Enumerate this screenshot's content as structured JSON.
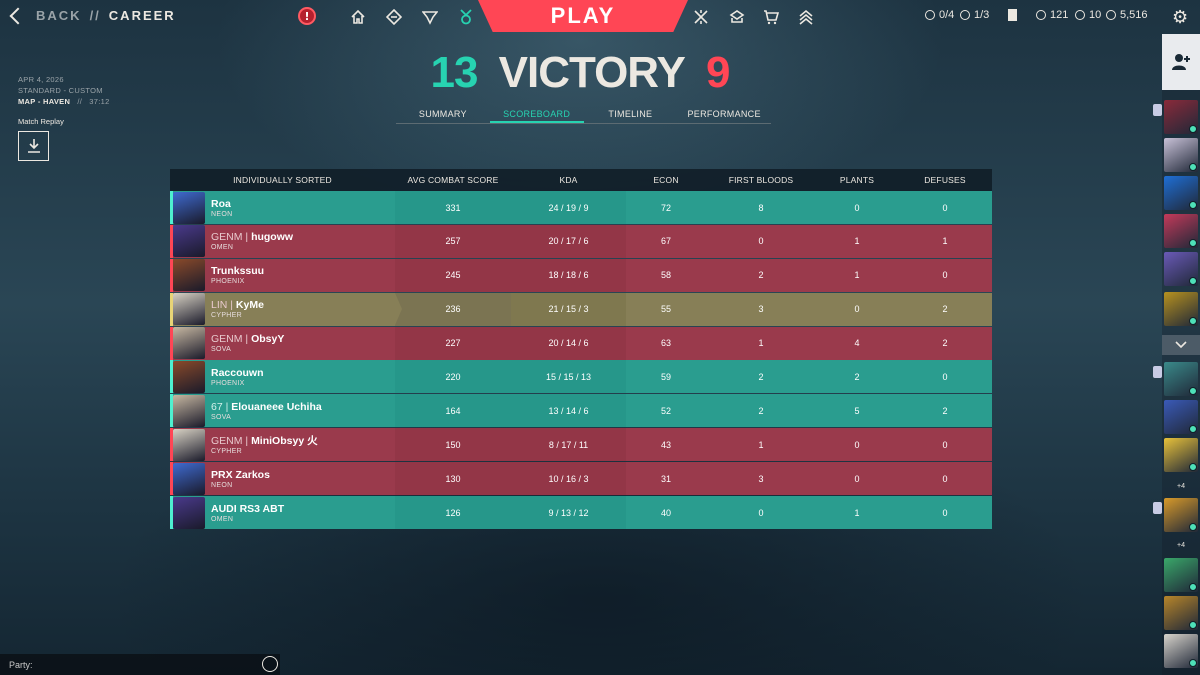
{
  "header": {
    "back_label": "BACK",
    "separator": "//",
    "section_label": "CAREER",
    "play_label": "PLAY",
    "alert_label": "!",
    "currencies": [
      {
        "icon": "radianite-icon",
        "value": "0/4"
      },
      {
        "icon": "token-icon",
        "value": "1/3"
      },
      {
        "icon": "kingdom-credits-icon",
        "value": "121"
      },
      {
        "icon": "radianite-points-icon",
        "value": "10"
      },
      {
        "icon": "valorant-points-icon",
        "value": "5,516"
      }
    ]
  },
  "match": {
    "date": "APR 4, 2026",
    "mode": "STANDARD - CUSTOM",
    "map": "MAP - HAVEN",
    "sep": "//",
    "duration": "37:12",
    "replay_label": "Match Replay",
    "score_us": "13",
    "result": "VICTORY",
    "score_them": "9"
  },
  "tabs": [
    {
      "label": "SUMMARY",
      "active": false
    },
    {
      "label": "SCOREBOARD",
      "active": true
    },
    {
      "label": "TIMELINE",
      "active": false
    },
    {
      "label": "PERFORMANCE",
      "active": false
    }
  ],
  "columns": [
    "INDIVIDUALLY SORTED",
    "AVG COMBAT SCORE",
    "KDA",
    "ECON",
    "FIRST BLOODS",
    "PLANTS",
    "DEFUSES"
  ],
  "players": [
    {
      "tag": "",
      "name": "Roa",
      "agent": "NEON",
      "team": "a",
      "acs": "331",
      "kda": "24 / 19 / 9",
      "econ": "72",
      "fb": "8",
      "plants": "0",
      "defuses": "0",
      "color": "#3f6bd1"
    },
    {
      "tag": "GENM | ",
      "name": "hugoww",
      "agent": "OMEN",
      "team": "b",
      "acs": "257",
      "kda": "20 / 17 / 6",
      "econ": "67",
      "fb": "0",
      "plants": "1",
      "defuses": "1",
      "color": "#4a3a8c"
    },
    {
      "tag": "",
      "name": "Trunkssuu",
      "agent": "PHOENIX",
      "team": "b",
      "acs": "245",
      "kda": "18 / 18 / 6",
      "econ": "58",
      "fb": "2",
      "plants": "1",
      "defuses": "0",
      "color": "#8a4a2a"
    },
    {
      "tag": "LIN | ",
      "name": "KyMe",
      "agent": "CYPHER",
      "team": "self",
      "acs": "236",
      "kda": "21 / 15 / 3",
      "econ": "55",
      "fb": "3",
      "plants": "0",
      "defuses": "2",
      "color": "#d8d2c4"
    },
    {
      "tag": "GENM | ",
      "name": "ObsyY",
      "agent": "SOVA",
      "team": "b",
      "acs": "227",
      "kda": "20 / 14 / 6",
      "econ": "63",
      "fb": "1",
      "plants": "4",
      "defuses": "2",
      "color": "#c7b8a2"
    },
    {
      "tag": "",
      "name": "Raccouwn",
      "agent": "PHOENIX",
      "team": "a",
      "acs": "220",
      "kda": "15 / 15 / 13",
      "econ": "59",
      "fb": "2",
      "plants": "2",
      "defuses": "0",
      "color": "#8a4a2a"
    },
    {
      "tag": "67 | ",
      "name": "Elouaneee Uchiha",
      "agent": "SOVA",
      "team": "a",
      "acs": "164",
      "kda": "13 / 14 / 6",
      "econ": "52",
      "fb": "2",
      "plants": "5",
      "defuses": "2",
      "color": "#c7b8a2"
    },
    {
      "tag": "GENM | ",
      "name": "MiniObsyy 火",
      "agent": "CYPHER",
      "team": "b",
      "acs": "150",
      "kda": "8 / 17 / 11",
      "econ": "43",
      "fb": "1",
      "plants": "0",
      "defuses": "0",
      "color": "#d8d2c4"
    },
    {
      "tag": "",
      "name": "PRX Zarkos",
      "agent": "NEON",
      "team": "b",
      "acs": "130",
      "kda": "10 / 16 / 3",
      "econ": "31",
      "fb": "3",
      "plants": "0",
      "defuses": "0",
      "color": "#3f6bd1"
    },
    {
      "tag": "",
      "name": "AUDI RS3 ABT",
      "agent": "OMEN",
      "team": "a",
      "acs": "126",
      "kda": "9 / 13 / 12",
      "econ": "40",
      "fb": "0",
      "plants": "1",
      "defuses": "0",
      "color": "#4a3a8c"
    }
  ],
  "party": {
    "label": "Party:"
  },
  "friends": {
    "more_label_1": "+4",
    "more_label_2": "+4"
  }
}
